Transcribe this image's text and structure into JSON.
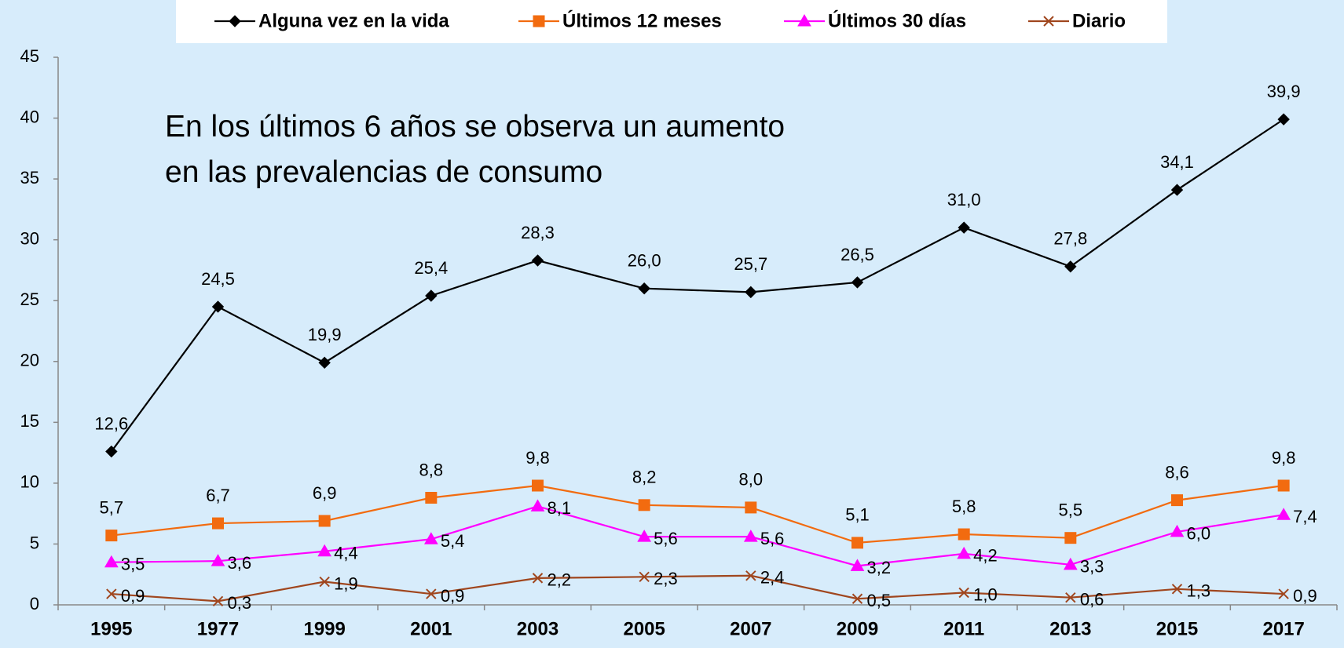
{
  "chart_data": {
    "type": "line",
    "annotation": "En los últimos 6 años se observa un aumento en las prevalencias de consumo",
    "categories": [
      "1995",
      "1977",
      "1999",
      "2001",
      "2003",
      "2005",
      "2007",
      "2009",
      "2011",
      "2013",
      "2015",
      "2017"
    ],
    "series": [
      {
        "name": "Alguna vez en la vida",
        "color": "#000000",
        "marker": "diamond",
        "values": [
          12.6,
          24.5,
          19.9,
          25.4,
          28.3,
          26.0,
          25.7,
          26.5,
          31.0,
          27.8,
          34.1,
          39.9
        ],
        "value_labels": [
          "12,6",
          "24,5",
          "19,9",
          "25,4",
          "28,3",
          "26,0",
          "25,7",
          "26,5",
          "31,0",
          "27,8",
          "34,1",
          "39,9"
        ]
      },
      {
        "name": "Últimos 12 meses",
        "color": "#f26b0f",
        "marker": "square",
        "values": [
          5.7,
          6.7,
          6.9,
          8.8,
          9.8,
          8.2,
          8.0,
          5.1,
          5.8,
          5.5,
          8.6,
          9.8
        ],
        "value_labels": [
          "5,7",
          "6,7",
          "6,9",
          "8,8",
          "9,8",
          "8,2",
          "8,0",
          "5,1",
          "5,8",
          "5,5",
          "8,6",
          "9,8"
        ]
      },
      {
        "name": "Últimos 30 días",
        "color": "#ff00ff",
        "marker": "triangle",
        "values": [
          3.5,
          3.6,
          4.4,
          5.4,
          8.1,
          5.6,
          5.6,
          3.2,
          4.2,
          3.3,
          6.0,
          7.4
        ],
        "value_labels": [
          "3,5",
          "3,6",
          "4,4",
          "5,4",
          "8,1",
          "5,6",
          "5,6",
          "3,2",
          "4,2",
          "3,3",
          "6,0",
          "7,4"
        ]
      },
      {
        "name": "Diario",
        "color": "#a0461e",
        "marker": "x",
        "values": [
          0.9,
          0.3,
          1.9,
          0.9,
          2.2,
          2.3,
          2.4,
          0.5,
          1.0,
          0.6,
          1.3,
          0.9
        ],
        "value_labels": [
          "0,9",
          "0,3",
          "1,9",
          "0,9",
          "2,2",
          "2,3",
          "2,4",
          "0,5",
          "1,0",
          "0,6",
          "1,3",
          "0,9"
        ]
      }
    ],
    "ylim": [
      0,
      45
    ],
    "yticks": [
      0,
      5,
      10,
      15,
      20,
      25,
      30,
      35,
      40,
      45
    ],
    "grid": false,
    "legend": "top"
  }
}
